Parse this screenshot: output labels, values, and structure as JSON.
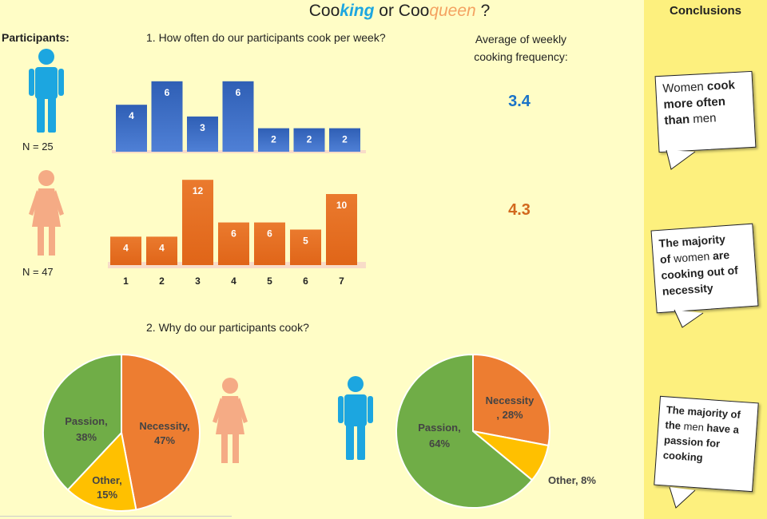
{
  "title": {
    "part1": "Coo",
    "part2": "king",
    "part3": " or Coo",
    "part4": "queen",
    "part5": " ?"
  },
  "participants_label": "Participants:",
  "men": {
    "n_label": "N = 25",
    "color": "#1ca6e0"
  },
  "women": {
    "n_label": "N = 47",
    "color": "#f5ab85"
  },
  "question1": "1. How often do our participants cook per week?",
  "question2": "2. Why do our participants cook?",
  "average": {
    "label_line1": "Average of weekly",
    "label_line2": "cooking frequency:",
    "men_value": "3.4",
    "women_value": "4.3",
    "men_color": "#1a73c8",
    "women_color": "#d2691e"
  },
  "conclusions": {
    "title": "Conclusions",
    "bubble1": {
      "a": "Women",
      "b": "cook",
      "c": "more often",
      "d": "than",
      "e": "men"
    },
    "bubble2": {
      "a": "The majority",
      "b": "of",
      "c": "women",
      "d": "are",
      "e": "cooking out of",
      "f": "necessity"
    },
    "bubble3": {
      "a": "The majority of",
      "b": "the",
      "c": "men",
      "d": "have a",
      "e": "passion for",
      "f": "cooking"
    }
  },
  "chart_data": [
    {
      "type": "bar",
      "title": "1. How often do our participants cook per week?",
      "categories": [
        "1",
        "2",
        "3",
        "4",
        "5",
        "6",
        "7"
      ],
      "series": [
        {
          "values": [
            4,
            6,
            3,
            6,
            2,
            2,
            2
          ]
        }
      ],
      "color": "#4472c4"
    },
    {
      "type": "bar",
      "categories": [
        "1",
        "2",
        "3",
        "4",
        "5",
        "6",
        "7"
      ],
      "series": [
        {
          "values": [
            4,
            4,
            12,
            6,
            6,
            5,
            10
          ]
        }
      ],
      "color": "#ed7d31"
    },
    {
      "type": "pie",
      "title": "2. Why do our participants cook?",
      "labels": [
        "Necessity",
        "Other",
        "Passion"
      ],
      "values": [
        47,
        15,
        38
      ],
      "label_text": [
        "Necessity,",
        "47%",
        "Other,",
        "15%",
        "Passion,",
        "38%"
      ],
      "colors": [
        "#ed7d31",
        "#ffc000",
        "#70ad47"
      ]
    },
    {
      "type": "pie",
      "labels": [
        "Necessity",
        "Other",
        "Passion"
      ],
      "values": [
        28,
        8,
        64
      ],
      "label_text": [
        "Necessity",
        ", 28%",
        "Other, 8%",
        "Passion,",
        "64%"
      ],
      "colors": [
        "#ed7d31",
        "#ffc000",
        "#70ad47"
      ]
    }
  ]
}
